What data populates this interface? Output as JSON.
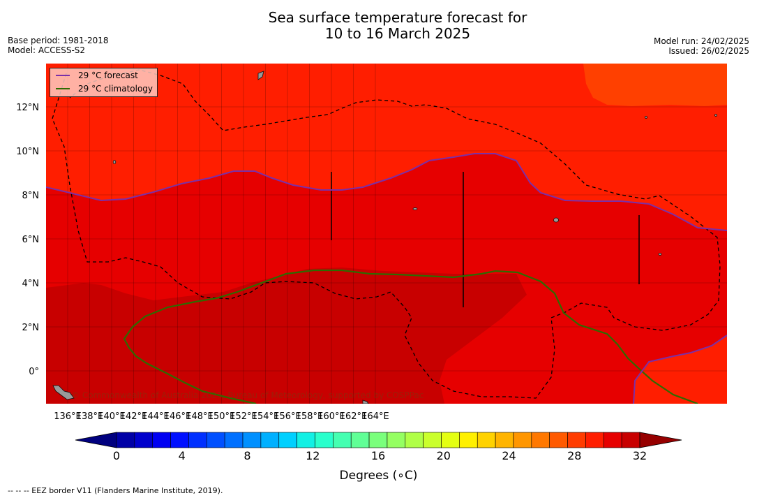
{
  "header": {
    "title_line1": "Sea surface temperature forecast for",
    "title_line2": "10 to 16 March 2025",
    "base_period": "Base period: 1981-2018",
    "model": "Model: ACCESS-S2",
    "model_run": "Model run: 24/02/2025",
    "issued": "Issued: 26/02/2025"
  },
  "map": {
    "lon_labels": [
      "136°E",
      "138°E",
      "140°E",
      "142°E",
      "144°E",
      "146°E",
      "148°E",
      "150°E",
      "152°E",
      "154°E",
      "156°E",
      "158°E",
      "160°E",
      "162°E",
      "164°E"
    ],
    "lat_labels": [
      "12°N",
      "10°N",
      "8°N",
      "6°N",
      "4°N",
      "2°N",
      "0°"
    ],
    "copyright": "© Commonwealth of Australia 2025, Bureau of Meteorology, supported by COSPPac",
    "colors": {
      "sst_29_30": "#ff1e00",
      "sst_30_31": "#e60000",
      "sst_31_32": "#c80000",
      "sst_28_29": "#ff4000",
      "forecast_line": "#7b2fa8",
      "climatology_line": "#2e6b00"
    }
  },
  "legend": {
    "forecast_label": "29 °C  forecast",
    "climatology_label": "29 °C  climatology"
  },
  "colorbar": {
    "tick_labels": [
      "0",
      "4",
      "8",
      "12",
      "16",
      "20",
      "24",
      "28",
      "32"
    ],
    "title": "Degrees (∘C)",
    "colors": [
      "#00007f",
      "#0000a6",
      "#0000cc",
      "#0000f2",
      "#0010ff",
      "#0030ff",
      "#0050ff",
      "#0070ff",
      "#0090ff",
      "#00b0ff",
      "#00d0ff",
      "#12f0e4",
      "#2affcc",
      "#45ffb1",
      "#60ff96",
      "#7aff7c",
      "#95ff62",
      "#b0ff47",
      "#caff2c",
      "#e4ff12",
      "#fff000",
      "#ffd200",
      "#ffb400",
      "#ff9600",
      "#ff7800",
      "#ff5a00",
      "#ff3c00",
      "#ff1e00",
      "#e60000",
      "#c80000",
      "#960000"
    ]
  },
  "footer": {
    "eez_note": "--  --  -- EEZ border V11 (Flanders Marine Institute, 2019)."
  }
}
